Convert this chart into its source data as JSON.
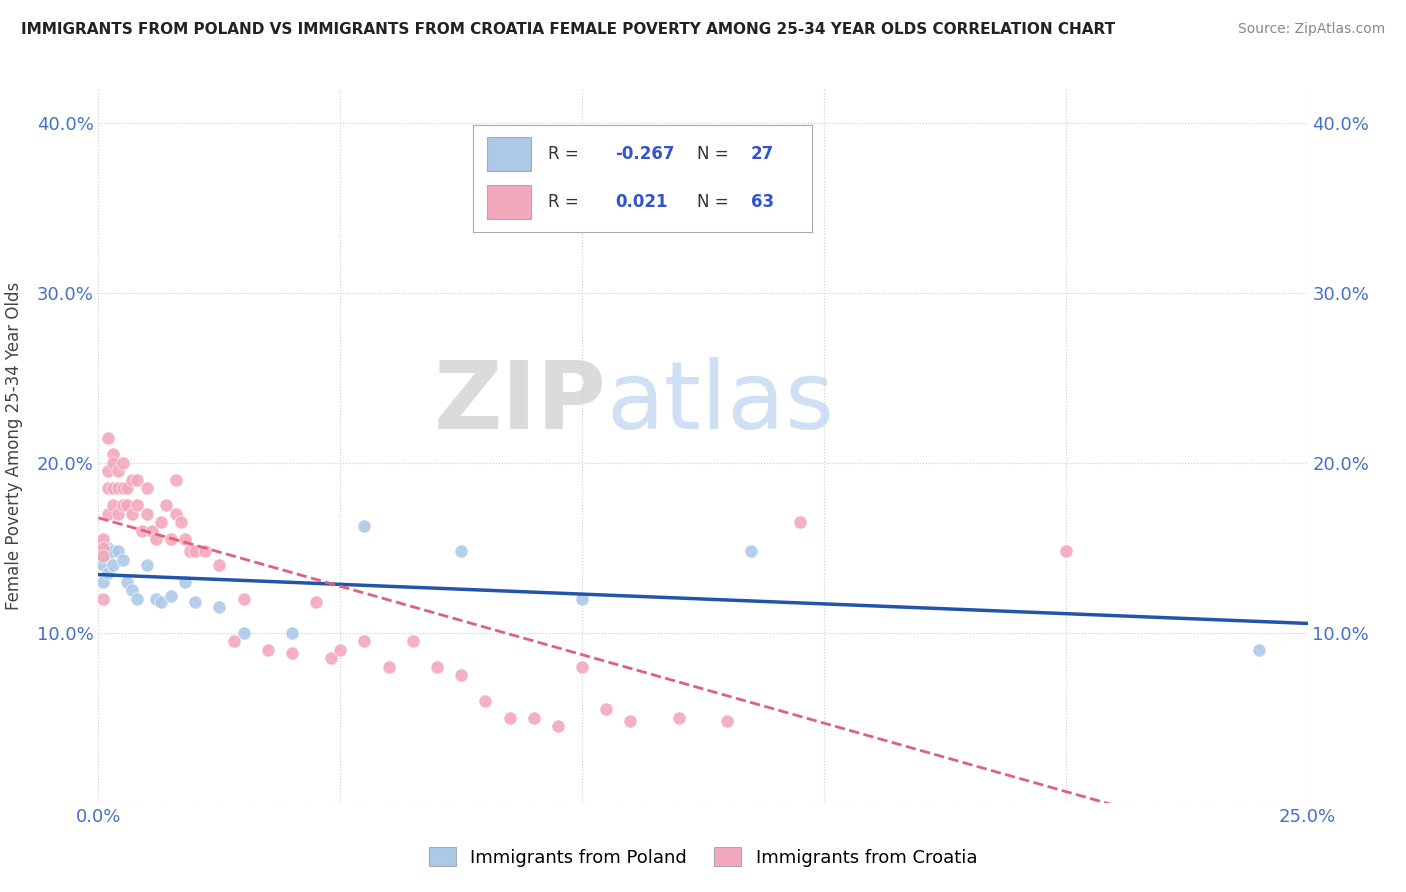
{
  "title": "IMMIGRANTS FROM POLAND VS IMMIGRANTS FROM CROATIA FEMALE POVERTY AMONG 25-34 YEAR OLDS CORRELATION CHART",
  "source": "Source: ZipAtlas.com",
  "ylabel": "Female Poverty Among 25-34 Year Olds",
  "xlim": [
    0.0,
    0.25
  ],
  "ylim": [
    0.0,
    0.42
  ],
  "xticks": [
    0.0,
    0.05,
    0.1,
    0.15,
    0.2,
    0.25
  ],
  "xticklabels": [
    "0.0%",
    "",
    "",
    "",
    "",
    "25.0%"
  ],
  "yticks": [
    0.0,
    0.1,
    0.2,
    0.3,
    0.4
  ],
  "yticklabels": [
    "",
    "10.0%",
    "20.0%",
    "30.0%",
    "40.0%"
  ],
  "poland_R": -0.267,
  "poland_N": 27,
  "croatia_R": 0.021,
  "croatia_N": 63,
  "poland_color": "#adc9e8",
  "croatia_color": "#f4a8bc",
  "poland_line_color": "#2255aa",
  "croatia_line_color": "#e06080",
  "watermark_ZIP": "ZIP",
  "watermark_atlas": "atlas",
  "poland_x": [
    0.001,
    0.001,
    0.001,
    0.002,
    0.002,
    0.002,
    0.003,
    0.003,
    0.004,
    0.005,
    0.006,
    0.007,
    0.008,
    0.01,
    0.012,
    0.013,
    0.015,
    0.018,
    0.02,
    0.025,
    0.03,
    0.04,
    0.055,
    0.075,
    0.1,
    0.135,
    0.24
  ],
  "poland_y": [
    0.145,
    0.14,
    0.13,
    0.15,
    0.145,
    0.135,
    0.148,
    0.14,
    0.148,
    0.143,
    0.13,
    0.125,
    0.12,
    0.14,
    0.12,
    0.118,
    0.122,
    0.13,
    0.118,
    0.115,
    0.1,
    0.1,
    0.163,
    0.148,
    0.12,
    0.148,
    0.09
  ],
  "croatia_x": [
    0.001,
    0.001,
    0.001,
    0.001,
    0.002,
    0.002,
    0.002,
    0.002,
    0.003,
    0.003,
    0.003,
    0.003,
    0.004,
    0.004,
    0.004,
    0.005,
    0.005,
    0.005,
    0.006,
    0.006,
    0.007,
    0.007,
    0.008,
    0.008,
    0.009,
    0.01,
    0.01,
    0.011,
    0.012,
    0.013,
    0.014,
    0.015,
    0.016,
    0.016,
    0.017,
    0.018,
    0.019,
    0.02,
    0.022,
    0.025,
    0.028,
    0.03,
    0.035,
    0.04,
    0.045,
    0.048,
    0.05,
    0.055,
    0.06,
    0.065,
    0.07,
    0.075,
    0.08,
    0.085,
    0.09,
    0.095,
    0.1,
    0.105,
    0.11,
    0.12,
    0.13,
    0.145,
    0.2
  ],
  "croatia_y": [
    0.155,
    0.15,
    0.145,
    0.12,
    0.215,
    0.195,
    0.185,
    0.17,
    0.205,
    0.2,
    0.185,
    0.175,
    0.195,
    0.185,
    0.17,
    0.2,
    0.185,
    0.175,
    0.185,
    0.175,
    0.19,
    0.17,
    0.19,
    0.175,
    0.16,
    0.185,
    0.17,
    0.16,
    0.155,
    0.165,
    0.175,
    0.155,
    0.19,
    0.17,
    0.165,
    0.155,
    0.148,
    0.148,
    0.148,
    0.14,
    0.095,
    0.12,
    0.09,
    0.088,
    0.118,
    0.085,
    0.09,
    0.095,
    0.08,
    0.095,
    0.08,
    0.075,
    0.06,
    0.05,
    0.05,
    0.045,
    0.08,
    0.055,
    0.048,
    0.05,
    0.048,
    0.165,
    0.148
  ]
}
